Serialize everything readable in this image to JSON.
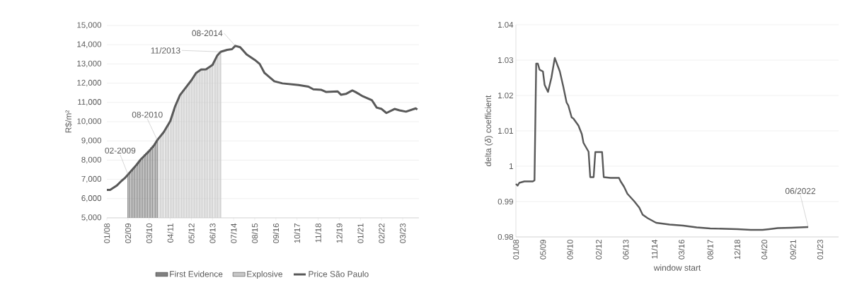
{
  "chart_data": [
    {
      "type": "line",
      "ylabel": "R$/m²",
      "xlim": [
        "2008-01",
        "2024-01"
      ],
      "ylim": [
        5000,
        15000
      ],
      "xticks": [
        {
          "value": "2008-01",
          "label": "01/08"
        },
        {
          "value": "2009-02",
          "label": "02/09"
        },
        {
          "value": "2010-03",
          "label": "03/10"
        },
        {
          "value": "2011-04",
          "label": "04/11"
        },
        {
          "value": "2012-05",
          "label": "05/12"
        },
        {
          "value": "2013-06",
          "label": "06/13"
        },
        {
          "value": "2014-07",
          "label": "07/14"
        },
        {
          "value": "2015-08",
          "label": "08/15"
        },
        {
          "value": "2016-09",
          "label": "09/16"
        },
        {
          "value": "2017-10",
          "label": "10/17"
        },
        {
          "value": "2018-11",
          "label": "11/18"
        },
        {
          "value": "2019-12",
          "label": "12/19"
        },
        {
          "value": "2021-01",
          "label": "01/21"
        },
        {
          "value": "2022-02",
          "label": "02/22"
        },
        {
          "value": "2023-03",
          "label": "03/23"
        }
      ],
      "yticks": [
        {
          "value": 5000,
          "label": "5,000"
        },
        {
          "value": 6000,
          "label": "6,000"
        },
        {
          "value": 7000,
          "label": "7,000"
        },
        {
          "value": 8000,
          "label": "8,000"
        },
        {
          "value": 9000,
          "label": "9,000"
        },
        {
          "value": 10000,
          "label": "10,000"
        },
        {
          "value": 11000,
          "label": "11,000"
        },
        {
          "value": 12000,
          "label": "12,000"
        },
        {
          "value": 13000,
          "label": "13,000"
        },
        {
          "value": 14000,
          "label": "14,000"
        },
        {
          "value": 15000,
          "label": "15,000"
        }
      ],
      "grid": "y",
      "legend": "bottom",
      "series": [
        {
          "name": "First Evidence",
          "type": "bar",
          "color": "#808080",
          "x": [
            "2009-02",
            "2009-03",
            "2009-04",
            "2009-05",
            "2009-06",
            "2009-07",
            "2009-08",
            "2009-09",
            "2009-10",
            "2009-11",
            "2009-12",
            "2010-01",
            "2010-02",
            "2010-03",
            "2010-04",
            "2010-05",
            "2010-06",
            "2010-07",
            "2010-08"
          ],
          "values": [
            7250,
            7350,
            7450,
            7550,
            7650,
            7730,
            7830,
            7950,
            8050,
            8150,
            8300,
            8380,
            8470,
            8560,
            8660,
            8760,
            8850,
            8950,
            9040
          ]
        },
        {
          "name": "Explosive",
          "type": "bar",
          "color": "#c8c8c8",
          "x": [
            "2010-09",
            "2010-10",
            "2010-11",
            "2010-12",
            "2011-01",
            "2011-02",
            "2011-03",
            "2011-04",
            "2011-05",
            "2011-06",
            "2011-07",
            "2011-08",
            "2011-09",
            "2011-10",
            "2011-11",
            "2011-12",
            "2012-01",
            "2012-02",
            "2012-03",
            "2012-04",
            "2012-05",
            "2012-06",
            "2012-07",
            "2012-08",
            "2012-09",
            "2012-10",
            "2012-11",
            "2012-12",
            "2013-01",
            "2013-02",
            "2013-03",
            "2013-04",
            "2013-05",
            "2013-06",
            "2013-07",
            "2013-08",
            "2013-09",
            "2013-10",
            "2013-11"
          ],
          "values": [
            9150,
            9250,
            9360,
            9460,
            9600,
            9750,
            9880,
            10030,
            10250,
            10520,
            10800,
            11000,
            11200,
            11380,
            11500,
            11620,
            11720,
            11820,
            11930,
            12040,
            12150,
            12280,
            12420,
            12540,
            12650,
            12700,
            12710,
            12710,
            12710,
            12720,
            12780,
            12840,
            12900,
            12950,
            13100,
            13300,
            13450,
            13540,
            13630
          ]
        },
        {
          "name": "Price São Paulo",
          "type": "line",
          "color": "#595959",
          "x": [
            "2008-01",
            "2008-03",
            "2008-07",
            "2008-10",
            "2008-12",
            "2009-02",
            "2009-07",
            "2009-10",
            "2010-01",
            "2010-03",
            "2010-06",
            "2010-08",
            "2010-12",
            "2011-04",
            "2011-07",
            "2011-10",
            "2012-02",
            "2012-05",
            "2012-08",
            "2012-11",
            "2013-02",
            "2013-06",
            "2013-09",
            "2013-11",
            "2014-03",
            "2014-06",
            "2014-08",
            "2014-11",
            "2015-03",
            "2015-08",
            "2015-11",
            "2016-02",
            "2016-08",
            "2017-01",
            "2017-11",
            "2018-05",
            "2018-08",
            "2019-01",
            "2019-04",
            "2019-11",
            "2020-01",
            "2020-04",
            "2020-08",
            "2020-10",
            "2021-02",
            "2021-08",
            "2021-11",
            "2022-02",
            "2022-05",
            "2022-10",
            "2023-01",
            "2023-05",
            "2023-11",
            "2023-12"
          ],
          "values": [
            6450,
            6450,
            6670,
            6920,
            7060,
            7250,
            7730,
            8050,
            8300,
            8470,
            8760,
            9040,
            9460,
            10030,
            10800,
            11380,
            11820,
            12150,
            12540,
            12710,
            12720,
            12950,
            13450,
            13630,
            13730,
            13770,
            13940,
            13870,
            13490,
            13210,
            13000,
            12530,
            12100,
            11990,
            11900,
            11820,
            11680,
            11650,
            11540,
            11570,
            11400,
            11440,
            11620,
            11540,
            11340,
            11120,
            10730,
            10660,
            10450,
            10660,
            10590,
            10520,
            10690,
            10630
          ]
        }
      ],
      "annotations": [
        {
          "text": "02-2009",
          "x": "2009-02",
          "y": 7250
        },
        {
          "text": "08-2010",
          "x": "2010-08",
          "y": 9040
        },
        {
          "text": "11/2013",
          "x": "2013-11",
          "y": 13630
        },
        {
          "text": "08-2014",
          "x": "2014-08",
          "y": 13940
        }
      ]
    },
    {
      "type": "line",
      "xlabel": "window start",
      "ylabel": "delta (*δ*) coefficient",
      "xlim": [
        "2008-01",
        "2023-12"
      ],
      "ylim": [
        0.98,
        1.04
      ],
      "xticks": [
        {
          "value": "2008-01",
          "label": "01/08"
        },
        {
          "value": "2009-05",
          "label": "05/09"
        },
        {
          "value": "2010-09",
          "label": "09/10"
        },
        {
          "value": "2012-02",
          "label": "02/12"
        },
        {
          "value": "2013-06",
          "label": "06/13"
        },
        {
          "value": "2014-11",
          "label": "11/14"
        },
        {
          "value": "2016-03",
          "label": "03/16"
        },
        {
          "value": "2017-08",
          "label": "08/17"
        },
        {
          "value": "2018-12",
          "label": "12/18"
        },
        {
          "value": "2020-04",
          "label": "04/20"
        },
        {
          "value": "2021-09",
          "label": "09/21"
        },
        {
          "value": "2023-01",
          "label": "01/23"
        }
      ],
      "yticks": [
        0.98,
        0.99,
        1,
        1.01,
        1.02,
        1.03,
        1.04
      ],
      "grid": "y",
      "color": "#595959",
      "x": [
        "2008-01",
        "2008-02",
        "2008-03",
        "2008-06",
        "2008-11",
        "2008-12",
        "2009-01",
        "2009-02",
        "2009-03",
        "2009-05",
        "2009-06",
        "2009-08",
        "2009-10",
        "2009-12",
        "2010-03",
        "2010-05",
        "2010-07",
        "2010-08",
        "2010-10",
        "2010-11",
        "2011-02",
        "2011-04",
        "2011-05",
        "2011-08",
        "2011-09",
        "2011-11",
        "2011-12",
        "2012-04",
        "2012-05",
        "2012-09",
        "2013-02",
        "2013-03",
        "2013-05",
        "2013-07",
        "2013-11",
        "2014-02",
        "2014-04",
        "2014-07",
        "2014-12",
        "2015-08",
        "2016-04",
        "2016-12",
        "2017-08",
        "2018-04",
        "2018-12",
        "2019-08",
        "2020-03",
        "2020-07",
        "2020-12",
        "2021-08",
        "2022-06"
      ],
      "values": [
        0.995,
        0.9945,
        0.9953,
        0.9957,
        0.9957,
        0.996,
        1.029,
        1.029,
        1.0273,
        1.0268,
        1.023,
        1.021,
        1.025,
        1.0306,
        1.0268,
        1.0226,
        1.018,
        1.0172,
        1.0138,
        1.0135,
        1.0115,
        1.0091,
        1.0066,
        1.0041,
        0.9969,
        0.9969,
        1.004,
        1.004,
        0.9969,
        0.9967,
        0.9967,
        0.9957,
        0.9942,
        0.9922,
        0.9901,
        0.9883,
        0.9863,
        0.9853,
        0.984,
        0.9835,
        0.9832,
        0.9827,
        0.9824,
        0.9823,
        0.9822,
        0.982,
        0.982,
        0.9822,
        0.9825,
        0.9826,
        0.9828
      ],
      "annotations": [
        {
          "text": "06/2022",
          "x": "2022-06",
          "y": 0.9828
        }
      ]
    }
  ]
}
